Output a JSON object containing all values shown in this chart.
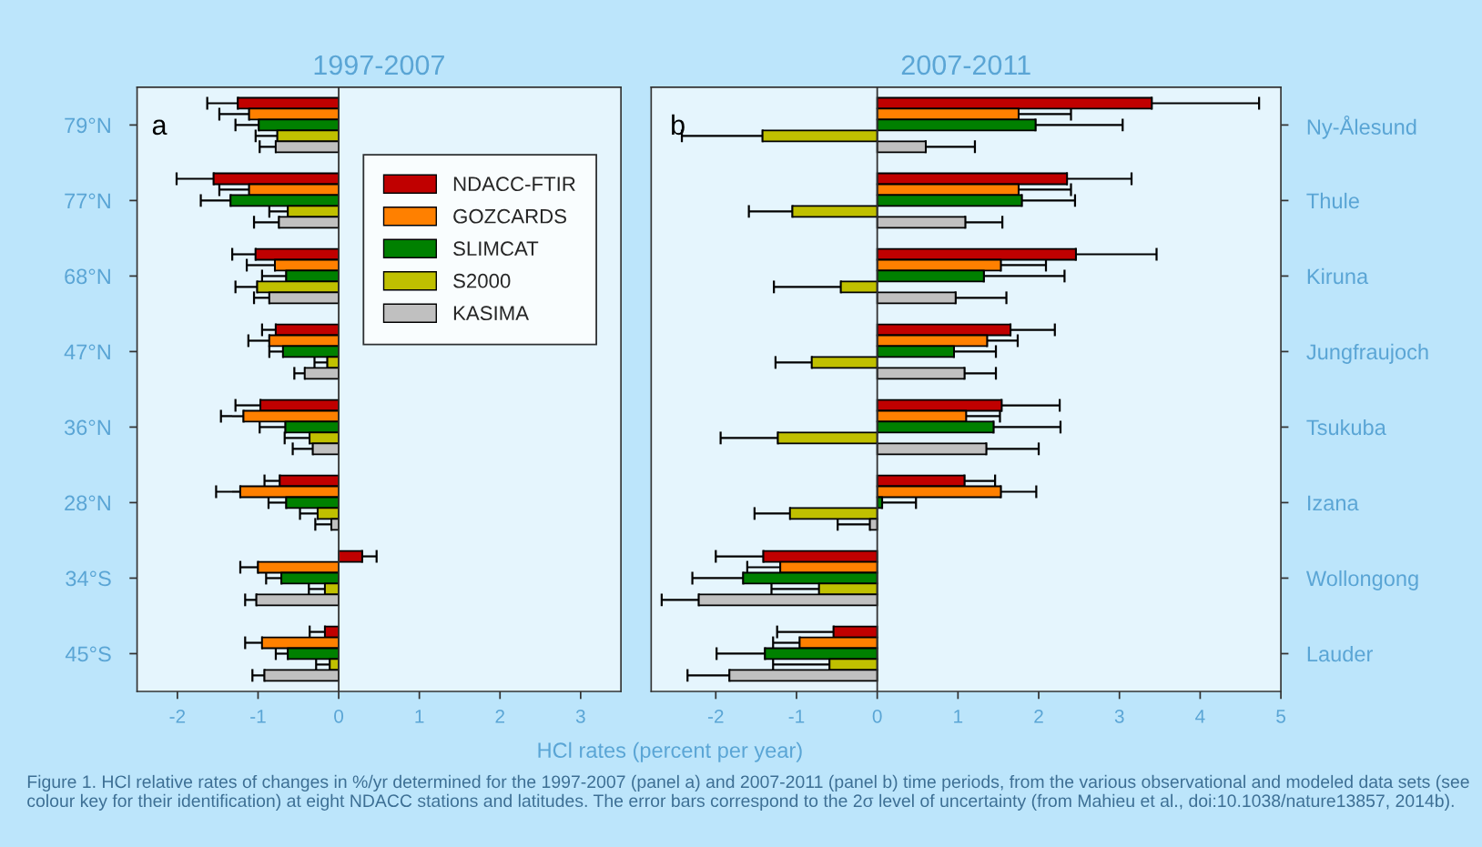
{
  "chart_data": [
    {
      "type": "bar",
      "orientation": "horizontal",
      "title": "1997-2007",
      "xlabel": "HCl rates (percent per year)",
      "categories": [
        "79°N",
        "77°N",
        "68°N",
        "47°N",
        "36°N",
        "28°N",
        "34°S",
        "45°S"
      ],
      "xlim": [
        -2.5,
        3.5
      ],
      "xticks": [
        -2,
        -1,
        0,
        1,
        2,
        3
      ],
      "legend": "top right",
      "ref_lines": [
        {
          "axis": "x",
          "value": 0,
          "color": "#333333"
        }
      ],
      "annotations": [
        "a"
      ],
      "series": [
        {
          "name": "NDACC-FTIR",
          "color": "#c00000",
          "values": [
            -1.25,
            -1.55,
            -1.03,
            -0.78,
            -0.97,
            -0.73,
            0.29,
            -0.17
          ],
          "errors": [
            0.38,
            0.46,
            0.29,
            0.17,
            0.31,
            0.19,
            0.18,
            0.19
          ]
        },
        {
          "name": "GOZCARDS",
          "color": "#ff8000",
          "values": [
            -1.11,
            -1.11,
            -0.79,
            -0.86,
            -1.18,
            -1.22,
            -1.0,
            -0.95
          ],
          "errors": [
            0.37,
            0.37,
            0.35,
            0.26,
            0.28,
            0.3,
            0.22,
            0.21
          ]
        },
        {
          "name": "SLIMCAT",
          "color": "#008000",
          "values": [
            -0.99,
            -1.34,
            -0.65,
            -0.69,
            -0.66,
            -0.65,
            -0.71,
            -0.63
          ],
          "errors": [
            0.29,
            0.37,
            0.3,
            0.17,
            0.32,
            0.22,
            0.19,
            0.15
          ]
        },
        {
          "name": "S2000",
          "color": "#c0c000",
          "values": [
            -0.76,
            -0.63,
            -1.01,
            -0.14,
            -0.36,
            -0.26,
            -0.17,
            -0.11
          ],
          "errors": [
            0.27,
            0.23,
            0.27,
            0.16,
            0.31,
            0.22,
            0.2,
            0.17
          ]
        },
        {
          "name": "KASIMA",
          "color": "#c0c0c0",
          "values": [
            -0.78,
            -0.74,
            -0.86,
            -0.42,
            -0.32,
            -0.09,
            -1.02,
            -0.92
          ],
          "errors": [
            0.2,
            0.31,
            0.19,
            0.13,
            0.25,
            0.2,
            0.14,
            0.15
          ]
        }
      ]
    },
    {
      "type": "bar",
      "orientation": "horizontal",
      "title": "2007-2011",
      "categories": [
        "Ny-Ålesund",
        "Thule",
        "Kiruna",
        "Jungfraujoch",
        "Tsukuba",
        "Izana",
        "Wollongong",
        "Lauder"
      ],
      "xlim": [
        -2.8,
        5
      ],
      "xticks": [
        -2,
        -1,
        0,
        1,
        2,
        3,
        4,
        5
      ],
      "ref_lines": [
        {
          "axis": "x",
          "value": 0,
          "color": "#333333"
        }
      ],
      "annotations": [
        "b",
        "Figure 1. HCl relative rates of changes in %/yr determined for the 1997-2007 (panel a) and 2007-2011 (panel b) time periods, from the various observational and modeled data sets (see colour key for their identification) at eight NDACC stations and latitudes. The error bars correspond to the 2σ level of uncertainty (from Mahieu et al., doi:10.1038/nature13857, 2014b)."
      ],
      "series": [
        {
          "color": "#c00000",
          "values": [
            3.4,
            2.35,
            2.46,
            1.65,
            1.54,
            1.08,
            -1.41,
            -0.54
          ],
          "errors": [
            1.33,
            0.8,
            1.0,
            0.55,
            0.72,
            0.38,
            0.59,
            0.7
          ]
        },
        {
          "color": "#ff8000",
          "values": [
            1.75,
            1.75,
            1.53,
            1.36,
            1.1,
            1.53,
            -1.2,
            -0.96
          ],
          "errors": [
            0.65,
            0.65,
            0.56,
            0.38,
            0.42,
            0.44,
            0.41,
            0.33
          ]
        },
        {
          "color": "#008000",
          "values": [
            1.96,
            1.79,
            1.32,
            0.95,
            1.44,
            0.06,
            -1.66,
            -1.39
          ],
          "errors": [
            1.08,
            0.66,
            1.0,
            0.52,
            0.83,
            0.42,
            0.63,
            0.6
          ]
        },
        {
          "color": "#c0c000",
          "values": [
            -1.42,
            -1.05,
            -0.45,
            -0.81,
            -1.23,
            -1.08,
            -0.72,
            -0.59
          ],
          "errors": [
            1.0,
            0.54,
            0.83,
            0.45,
            0.71,
            0.44,
            0.59,
            0.7
          ]
        },
        {
          "color": "#c0c0c0",
          "values": [
            0.6,
            1.09,
            0.97,
            1.08,
            1.35,
            -0.09,
            -2.21,
            -1.83
          ],
          "errors": [
            0.61,
            0.46,
            0.63,
            0.39,
            0.65,
            0.4,
            0.46,
            0.52
          ]
        }
      ]
    }
  ]
}
